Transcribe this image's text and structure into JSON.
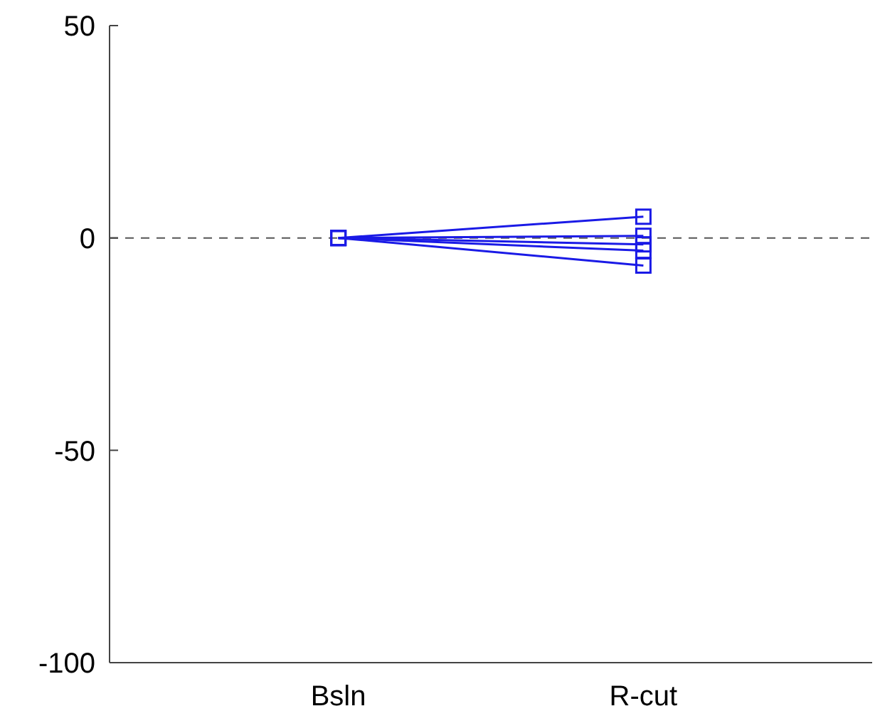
{
  "chart_data": {
    "type": "line",
    "categories": [
      "Bsln",
      "R-cut"
    ],
    "series": [
      {
        "color": "#1a1ae6",
        "values": [
          0,
          5
        ]
      },
      {
        "color": "#1a1ae6",
        "values": [
          0,
          0.5
        ]
      },
      {
        "color": "#1a1ae6",
        "values": [
          0,
          -1.5
        ]
      },
      {
        "color": "#1a1ae6",
        "values": [
          0,
          -3
        ]
      },
      {
        "color": "#1a1ae6",
        "values": [
          0,
          -6.5
        ]
      }
    ],
    "ylim": [
      -100,
      50
    ],
    "yticks": [
      -100,
      -50,
      0,
      50
    ],
    "marker": "square",
    "line_style": "solid",
    "grid": false,
    "legend": false,
    "ref_lines": [
      {
        "axis": "y",
        "value": 0,
        "color": "#555555",
        "line_style": "dashed"
      }
    ]
  }
}
